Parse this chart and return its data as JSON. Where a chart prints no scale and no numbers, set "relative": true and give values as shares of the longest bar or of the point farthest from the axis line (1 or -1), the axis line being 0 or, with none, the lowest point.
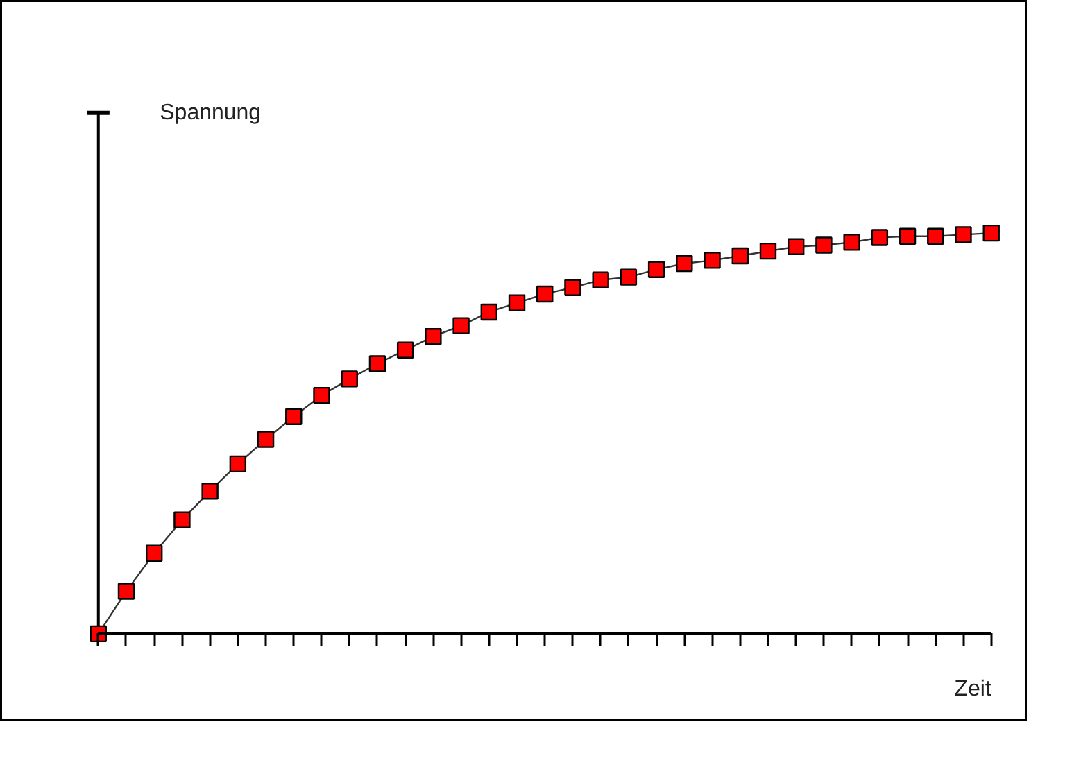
{
  "chart_data": {
    "type": "line",
    "relative": true,
    "xlabel": "Zeit",
    "ylabel": "Spannung",
    "marker": "square",
    "grid": false,
    "categories": [
      null,
      null,
      null,
      null,
      null,
      null,
      null,
      null,
      null,
      null,
      null,
      null,
      null,
      null,
      null,
      null,
      null,
      null,
      null,
      null,
      null,
      null,
      null,
      null,
      null,
      null,
      null,
      null,
      null,
      null,
      null,
      null,
      null
    ],
    "series": [
      {
        "color": "#333333",
        "colors": [
          "#ff0000",
          "#ff0000",
          "#ff0000",
          "#ff0000",
          "#ff0000",
          "#ff0000",
          "#ff0000",
          "#ff0000",
          "#ff0000",
          "#ff0000",
          "#ff0000",
          "#ff0000",
          "#ff0000",
          "#ff0000",
          "#ff0000",
          "#ff0000",
          "#ff0000",
          "#ff0000",
          "#ff0000",
          "#ff0000",
          "#ff0000",
          "#ff0000",
          "#ff0000",
          "#ff0000",
          "#ff0000",
          "#ff0000",
          "#ff0000",
          "#ff0000",
          "#ff0000",
          "#ff0000",
          "#ff0000",
          "#ff0000",
          "#ff0000"
        ],
        "values": [
          0,
          0.106,
          0.201,
          0.284,
          0.356,
          0.424,
          0.485,
          0.542,
          0.595,
          0.636,
          0.674,
          0.708,
          0.742,
          0.769,
          0.803,
          0.826,
          0.848,
          0.864,
          0.883,
          0.89,
          0.909,
          0.924,
          0.932,
          0.943,
          0.955,
          0.966,
          0.97,
          0.977,
          0.989,
          0.992,
          0.992,
          0.996,
          1
        ]
      }
    ]
  }
}
